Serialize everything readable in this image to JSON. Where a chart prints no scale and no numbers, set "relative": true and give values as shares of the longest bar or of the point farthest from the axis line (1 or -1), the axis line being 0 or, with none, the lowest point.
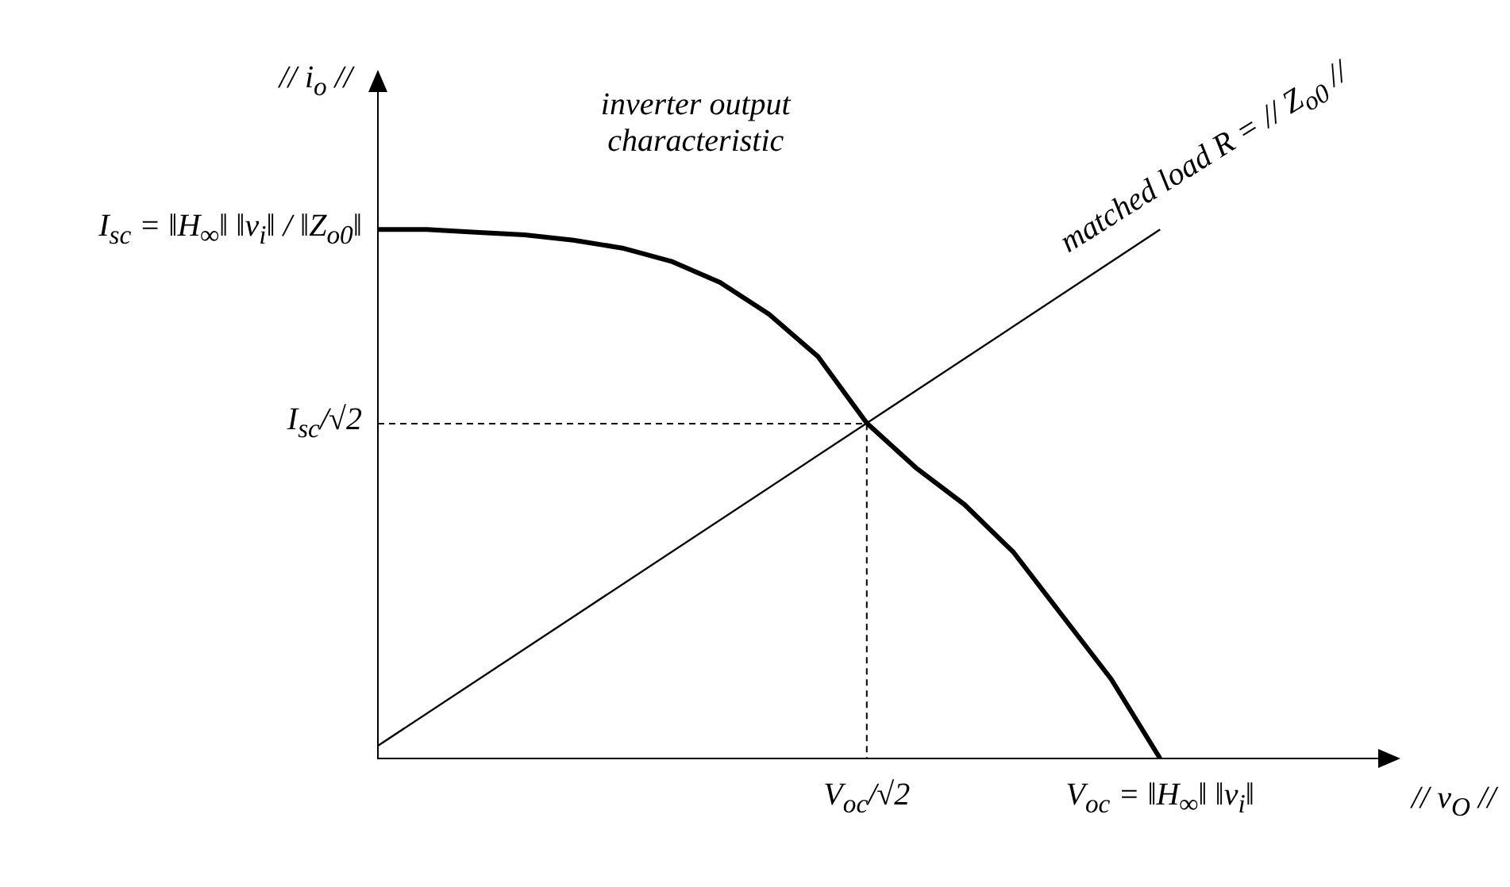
{
  "chart_data": {
    "type": "line",
    "relative": true,
    "xlabel": "// v$_{O}$ //",
    "ylabel": "// i$_{o}$ //",
    "categories": [
      null,
      null,
      null,
      null,
      null,
      null,
      null,
      null,
      null,
      null,
      null,
      null,
      null,
      null,
      null,
      null,
      null,
      null,
      null,
      null
    ],
    "grid": false,
    "legend": false,
    "marker": "none",
    "series": [
      {
        "color": "#000000",
        "values": [
          1,
          1,
          0.995,
          0.99,
          0.98,
          0.965,
          0.94,
          0.9,
          0.84,
          0.76,
          0.634,
          0.55,
          0.48,
          0.39,
          0.27,
          0.15,
          0,
          null,
          null,
          null
        ]
      },
      {
        "color": "#000000",
        "values": [
          0.024,
          null,
          null,
          null,
          null,
          null,
          null,
          null,
          null,
          null,
          null,
          null,
          null,
          null,
          null,
          null,
          1,
          null,
          null,
          null
        ]
      }
    ],
    "annotations": [
      "V$_{oc}$/√2",
      "V$_{oc}$ = ‖H$_{∞}$‖ ‖v$_{i}$‖",
      "I$_{sc}$/√2",
      "I$_{sc}$ = ‖H$_{∞}$‖ ‖v$_{i}$‖ / ‖Z$_{o0}$‖",
      "inverter output characteristic",
      "matched load R = // Z$_{o0}$ //"
    ]
  }
}
